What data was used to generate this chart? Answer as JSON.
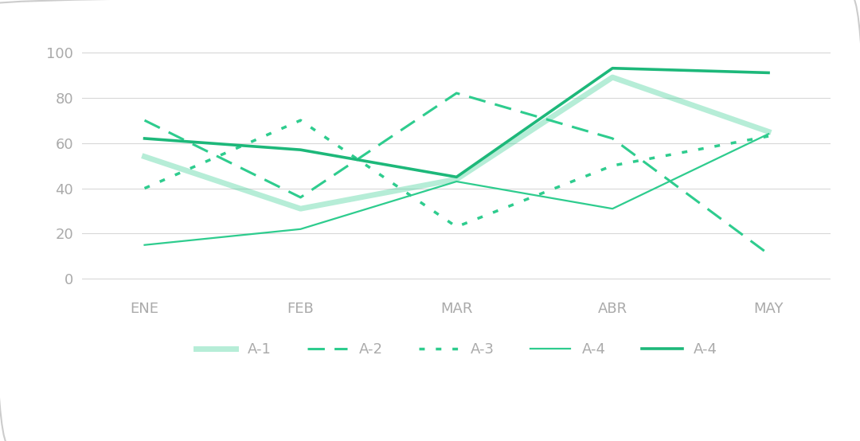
{
  "x_labels": [
    "ENE",
    "FEB",
    "MAR",
    "ABR",
    "MAY"
  ],
  "series": [
    {
      "label": "A-1",
      "values": [
        54,
        31,
        44,
        89,
        65
      ],
      "color": "#2ecc8e",
      "linestyle": "solid",
      "linewidth": 5.0,
      "alpha": 0.35
    },
    {
      "label": "A-2",
      "values": [
        70,
        36,
        82,
        62,
        11
      ],
      "color": "#2ecc8e",
      "linestyle": "dashed",
      "linewidth": 2.2,
      "alpha": 1.0,
      "dash_pattern": [
        7,
        4
      ]
    },
    {
      "label": "A-3",
      "values": [
        40,
        70,
        23,
        50,
        63
      ],
      "color": "#2ecc8e",
      "linestyle": "dotted",
      "linewidth": 2.5,
      "alpha": 1.0,
      "dash_pattern": [
        2,
        4
      ]
    },
    {
      "label": "A-4",
      "values": [
        15,
        22,
        43,
        31,
        64
      ],
      "color": "#2ecc8e",
      "linestyle": "solid",
      "linewidth": 1.6,
      "alpha": 1.0
    },
    {
      "label": "A-4",
      "values": [
        62,
        57,
        45,
        93,
        91
      ],
      "color": "#1db87a",
      "linestyle": "solid",
      "linewidth": 2.6,
      "alpha": 1.0
    }
  ],
  "ylim": [
    -5,
    112
  ],
  "yticks": [
    0,
    20,
    40,
    60,
    80,
    100
  ],
  "background_color": "#ffffff",
  "grid_color": "#d8d8d8",
  "tick_color": "#aaaaaa",
  "legend_label_color": "#aaaaaa",
  "figsize": [
    10.8,
    5.54
  ],
  "dpi": 100
}
